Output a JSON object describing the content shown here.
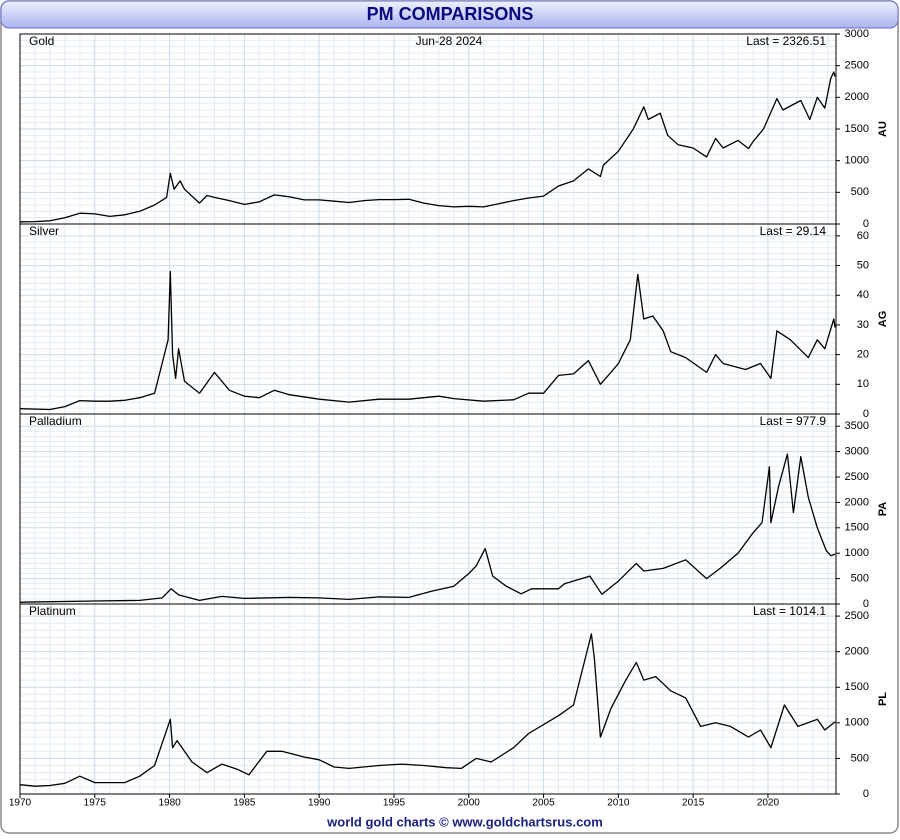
{
  "header": {
    "title": "PM COMPARISONS"
  },
  "footer": {
    "text": "world gold charts © www.goldchartsrus.com"
  },
  "chart_data": [
    {
      "type": "line",
      "title": "Gold",
      "date": "Jun-28 2024",
      "annotation": "Last = 2326.51",
      "axis_label": "AU",
      "color": "#000000",
      "xlim": [
        1970,
        2024.55
      ],
      "xticks": [
        1970,
        1975,
        1980,
        1985,
        1990,
        1995,
        2000,
        2005,
        2010,
        2015,
        2020
      ],
      "ylim": [
        0,
        3000
      ],
      "yticks": [
        0,
        500,
        1000,
        1500,
        2000,
        2500,
        3000
      ],
      "x": [
        1970,
        1971,
        1972,
        1973,
        1974,
        1975,
        1976,
        1977,
        1978,
        1979,
        1979.8,
        1980.05,
        1980.3,
        1980.7,
        1981,
        1982,
        1982.5,
        1983,
        1984,
        1985,
        1986,
        1987,
        1988,
        1989,
        1990,
        1991,
        1992,
        1993,
        1994,
        1995,
        1996,
        1997,
        1998,
        1999,
        2000,
        2001,
        2002,
        2003,
        2004,
        2005,
        2006,
        2007,
        2008,
        2008.8,
        2009,
        2010,
        2011,
        2011.7,
        2012,
        2012.8,
        2013.3,
        2014,
        2015,
        2015.9,
        2016.5,
        2017,
        2018,
        2018.7,
        2019,
        2019.7,
        2020.6,
        2021,
        2022.2,
        2022.8,
        2023.3,
        2023.8,
        2024.2,
        2024.4,
        2024.49
      ],
      "values": [
        35,
        38,
        50,
        100,
        170,
        160,
        120,
        145,
        200,
        300,
        420,
        800,
        550,
        680,
        550,
        330,
        450,
        420,
        370,
        310,
        350,
        460,
        430,
        380,
        380,
        360,
        340,
        370,
        385,
        385,
        390,
        330,
        290,
        270,
        280,
        270,
        320,
        370,
        410,
        440,
        600,
        680,
        870,
        750,
        930,
        1150,
        1500,
        1850,
        1650,
        1750,
        1400,
        1250,
        1200,
        1060,
        1350,
        1200,
        1320,
        1190,
        1300,
        1500,
        1980,
        1800,
        1950,
        1650,
        2000,
        1830,
        2300,
        2400,
        2326.51
      ]
    },
    {
      "type": "line",
      "title": "Silver",
      "annotation": "Last = 29.14",
      "axis_label": "AG",
      "color": "#000000",
      "xlim": [
        1970,
        2024.55
      ],
      "xticks": [
        1970,
        1975,
        1980,
        1985,
        1990,
        1995,
        2000,
        2005,
        2010,
        2015,
        2020
      ],
      "ylim": [
        0,
        64
      ],
      "yticks": [
        0,
        10,
        20,
        30,
        40,
        50,
        60
      ],
      "x": [
        1970,
        1972,
        1973,
        1974,
        1975,
        1976,
        1977,
        1978,
        1979,
        1979.9,
        1980.05,
        1980.2,
        1980.4,
        1980.6,
        1981,
        1982,
        1983,
        1984,
        1985,
        1986,
        1987,
        1988,
        1990,
        1992,
        1994,
        1996,
        1998,
        1999,
        2001,
        2003,
        2004,
        2005,
        2006,
        2007,
        2008,
        2008.8,
        2009.5,
        2010,
        2010.8,
        2011.3,
        2011.7,
        2012.3,
        2013,
        2013.5,
        2014.5,
        2015.9,
        2016.5,
        2017,
        2018.5,
        2019.5,
        2020.2,
        2020.6,
        2021.5,
        2022.7,
        2023.3,
        2023.8,
        2024.4,
        2024.49
      ],
      "values": [
        1.8,
        1.5,
        2.5,
        4.5,
        4.3,
        4.3,
        4.6,
        5.5,
        7,
        25,
        48,
        20,
        12,
        22,
        11,
        7,
        14,
        8,
        6,
        5.5,
        8,
        6.5,
        5,
        4,
        5,
        5,
        6,
        5.2,
        4.3,
        4.8,
        7,
        7,
        13,
        13.5,
        18,
        10,
        14,
        17,
        25,
        47,
        32,
        33,
        28,
        21,
        19,
        14,
        20,
        17,
        15,
        17,
        12,
        28,
        25,
        19,
        25,
        22,
        32,
        29.14
      ]
    },
    {
      "type": "line",
      "title": "Palladium",
      "annotation": "Last = 977.9",
      "axis_label": "PA",
      "color": "#000000",
      "xlim": [
        1970,
        2024.55
      ],
      "xticks": [
        1970,
        1975,
        1980,
        1985,
        1990,
        1995,
        2000,
        2005,
        2010,
        2015,
        2020
      ],
      "ylim": [
        0,
        3740
      ],
      "yticks": [
        0,
        500,
        1000,
        1500,
        2000,
        2500,
        3000,
        3500
      ],
      "x": [
        1970,
        1975,
        1978,
        1979.5,
        1980.1,
        1980.6,
        1982,
        1983.5,
        1985,
        1988,
        1990,
        1992,
        1994,
        1996,
        1997.5,
        1999,
        2000,
        2000.5,
        2001.1,
        2001.6,
        2002.5,
        2003.5,
        2004.2,
        2006,
        2006.4,
        2008.1,
        2008.9,
        2010,
        2011.2,
        2011.7,
        2013,
        2014.5,
        2015.9,
        2016.8,
        2018,
        2019,
        2019.6,
        2020.1,
        2020.2,
        2020.7,
        2021.3,
        2021.7,
        2022.2,
        2022.7,
        2023.3,
        2023.9,
        2024.2,
        2024.49
      ],
      "values": [
        35,
        60,
        70,
        120,
        300,
        180,
        70,
        150,
        110,
        130,
        120,
        90,
        140,
        130,
        250,
        350,
        600,
        750,
        1090,
        550,
        350,
        200,
        300,
        300,
        400,
        550,
        190,
        450,
        800,
        650,
        700,
        870,
        500,
        700,
        1000,
        1400,
        1600,
        2700,
        1600,
        2300,
        2950,
        1800,
        2900,
        2100,
        1500,
        1050,
        950,
        977.9
      ]
    },
    {
      "type": "line",
      "title": "Platinum",
      "annotation": "Last = 1014.1",
      "axis_label": "PL",
      "color": "#000000",
      "xlim": [
        1970,
        2024.55
      ],
      "xticks": [
        1970,
        1975,
        1980,
        1985,
        1990,
        1995,
        2000,
        2005,
        2010,
        2015,
        2020
      ],
      "ylim": [
        0,
        2670
      ],
      "yticks": [
        0,
        500,
        1000,
        1500,
        2000,
        2500
      ],
      "x": [
        1970,
        1971,
        1972,
        1973,
        1974,
        1975,
        1977,
        1978,
        1979,
        1980.05,
        1980.2,
        1980.5,
        1981.5,
        1982.5,
        1983.5,
        1984.5,
        1985.3,
        1986.5,
        1987.5,
        1989,
        1990,
        1991,
        1992,
        1994,
        1995.5,
        1997,
        1998.5,
        1999.5,
        2000.5,
        2001.5,
        2003,
        2004,
        2006,
        2007,
        2008.2,
        2008.4,
        2008.8,
        2009.5,
        2010.5,
        2011.2,
        2011.7,
        2012.5,
        2013.5,
        2014.5,
        2015.5,
        2016.5,
        2017.5,
        2018.7,
        2019.5,
        2020.2,
        2021.1,
        2022,
        2023.3,
        2023.8,
        2024.49
      ],
      "values": [
        130,
        110,
        120,
        150,
        250,
        160,
        160,
        250,
        400,
        1050,
        650,
        750,
        450,
        300,
        420,
        350,
        270,
        600,
        600,
        520,
        480,
        380,
        360,
        400,
        420,
        400,
        370,
        360,
        500,
        450,
        650,
        850,
        1100,
        1250,
        2250,
        1900,
        800,
        1200,
        1600,
        1850,
        1600,
        1650,
        1450,
        1350,
        950,
        1000,
        950,
        800,
        900,
        650,
        1250,
        950,
        1050,
        900,
        1014.1
      ]
    }
  ]
}
